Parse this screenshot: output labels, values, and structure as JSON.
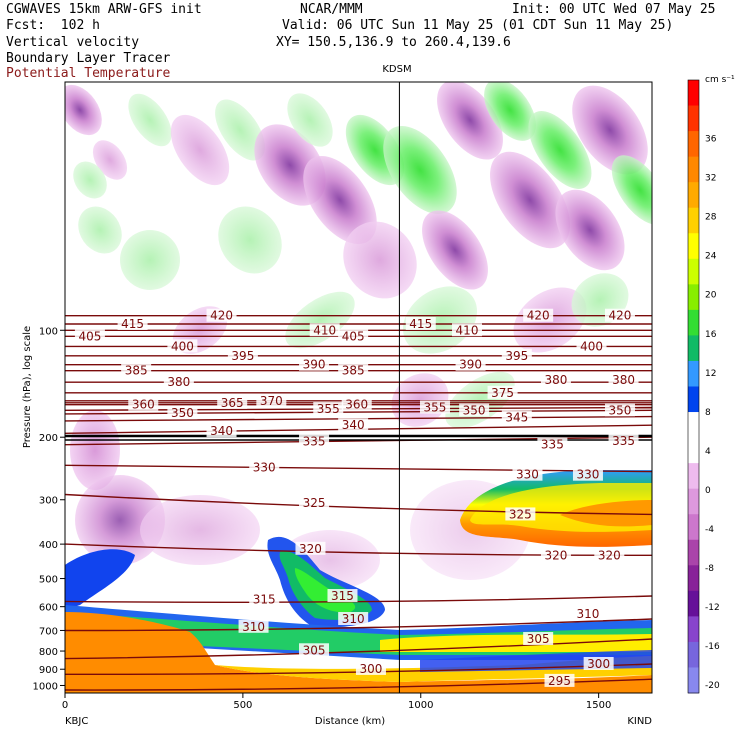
{
  "header": {
    "line1_left": "CGWAVES 15km ARW-GFS init",
    "line1_center": "NCAR/MMM",
    "line1_right": "Init: 00 UTC Wed 07 May 25",
    "line2_left": "Fcst:  102 h",
    "line2_right": "Valid: 06 UTC Sun 11 May 25 (01 CDT Sun 11 May 25)",
    "line3_left": "Vertical velocity",
    "line3_right": "XY= 150.5,136.9 to 260.4,139.6",
    "line4_left": "Boundary Layer Tracer",
    "line5_left": "Potential Temperature"
  },
  "colors": {
    "theta_contour": "#7a0a0a",
    "potential_temperature_label": "#8b1a1a",
    "cross_line": "#000000"
  },
  "chart_data": {
    "type": "heatmap",
    "xlabel": "Distance (km)",
    "ylabel": "Pressure (hPa), log scale",
    "xlim": [
      0,
      1650
    ],
    "ylim": [
      1050,
      20
    ],
    "y_scale": "log",
    "x_ticks": [
      0,
      500,
      1000,
      1500
    ],
    "y_ticks": [
      100,
      200,
      300,
      400,
      500,
      600,
      700,
      800,
      900,
      1000
    ],
    "station_left": "KBJC",
    "station_right": "KIND",
    "station_mid": "KDSM",
    "station_mid_x": 940,
    "colorbar": {
      "unit": "cm s⁻¹",
      "labels": [
        36,
        32,
        28,
        24,
        20,
        16,
        12,
        8,
        4,
        0,
        -4,
        -8,
        -12,
        -16,
        -20
      ],
      "colors": [
        "#ff0000",
        "#ff3300",
        "#ff6600",
        "#ff8800",
        "#ffaa00",
        "#ffd000",
        "#ffff00",
        "#ccff00",
        "#88ee00",
        "#33dd33",
        "#11bb66",
        "#3399ff",
        "#0044ee",
        "#ffffff",
        "#ffffff",
        "#eebbee",
        "#dd99dd",
        "#cc77cc",
        "#aa44aa",
        "#882299",
        "#661199",
        "#8844cc",
        "#7766dd",
        "#8888ee"
      ]
    },
    "theta_isentropes": [
      {
        "theta": 295,
        "p_left": 1030,
        "p_right": 960,
        "label_x": 1390
      },
      {
        "theta": 300,
        "p_left": 930,
        "p_right": 870,
        "label_x": 860
      },
      {
        "theta": 305,
        "p_left": 840,
        "p_right": 740,
        "label_x": 700
      },
      {
        "theta": 310,
        "p_left": 700,
        "p_right": 650,
        "label_x": 530
      },
      {
        "theta": 315,
        "p_left": 580,
        "p_right": 560,
        "label_x": 560
      },
      {
        "theta": 320,
        "p_left": 400,
        "p_right": 430,
        "label_x": 690
      },
      {
        "theta": 325,
        "p_left": 290,
        "p_right": 330,
        "label_x": 700
      },
      {
        "theta": 330,
        "p_left": 240,
        "p_right": 250,
        "label_x": 560
      },
      {
        "theta": 335,
        "p_left": 210,
        "p_right": 200,
        "label_x": 700
      },
      {
        "theta": 340,
        "p_left": 195,
        "p_right": 185,
        "label_x": 440
      },
      {
        "theta": 345,
        "p_left": 180,
        "p_right": 175,
        "label_x": 1270
      },
      {
        "theta": 350,
        "p_left": 172,
        "p_right": 168,
        "label_x": 330
      },
      {
        "theta": 355,
        "p_left": 168,
        "p_right": 165,
        "label_x": 740
      },
      {
        "theta": 360,
        "p_left": 162,
        "p_right": 162,
        "label_x": 220
      },
      {
        "theta": 365,
        "p_left": 160,
        "p_right": 160,
        "label_x": 470
      },
      {
        "theta": 370,
        "p_left": 158,
        "p_right": 158,
        "label_x": 580
      },
      {
        "theta": 375,
        "p_left": 150,
        "p_right": 150,
        "label_x": 1230
      },
      {
        "theta": 380,
        "p_left": 140,
        "p_right": 140,
        "label_x": 320
      },
      {
        "theta": 385,
        "p_left": 130,
        "p_right": 130,
        "label_x": 200
      },
      {
        "theta": 390,
        "p_left": 125,
        "p_right": 125,
        "label_x": 700
      },
      {
        "theta": 395,
        "p_left": 118,
        "p_right": 118,
        "label_x": 500
      },
      {
        "theta": 400,
        "p_left": 111,
        "p_right": 111,
        "label_x": 330
      },
      {
        "theta": 405,
        "p_left": 104,
        "p_right": 104,
        "label_x": 70
      },
      {
        "theta": 410,
        "p_left": 100,
        "p_right": 100,
        "label_x": 730
      },
      {
        "theta": 415,
        "p_left": 96,
        "p_right": 96,
        "label_x": 190
      },
      {
        "theta": 420,
        "p_left": 91,
        "p_right": 91,
        "label_x": 440
      }
    ],
    "extra_labels": [
      {
        "text": "405",
        "x": 810,
        "p": 104
      },
      {
        "text": "415",
        "x": 1000,
        "p": 96
      },
      {
        "text": "410",
        "x": 1130,
        "p": 100
      },
      {
        "text": "420",
        "x": 1330,
        "p": 91
      },
      {
        "text": "420",
        "x": 1560,
        "p": 91
      },
      {
        "text": "400",
        "x": 1480,
        "p": 111
      },
      {
        "text": "395",
        "x": 1270,
        "p": 118
      },
      {
        "text": "390",
        "x": 1140,
        "p": 125
      },
      {
        "text": "385",
        "x": 810,
        "p": 130
      },
      {
        "text": "380",
        "x": 1380,
        "p": 138
      },
      {
        "text": "380",
        "x": 1570,
        "p": 138
      },
      {
        "text": "360",
        "x": 820,
        "p": 162
      },
      {
        "text": "355",
        "x": 1040,
        "p": 165
      },
      {
        "text": "350",
        "x": 1150,
        "p": 168
      },
      {
        "text": "350",
        "x": 1560,
        "p": 168
      },
      {
        "text": "340",
        "x": 810,
        "p": 185
      },
      {
        "text": "335",
        "x": 1370,
        "p": 210
      },
      {
        "text": "335",
        "x": 1570,
        "p": 205
      },
      {
        "text": "330",
        "x": 1300,
        "p": 255
      },
      {
        "text": "330",
        "x": 1470,
        "p": 255
      },
      {
        "text": "325",
        "x": 1280,
        "p": 330
      },
      {
        "text": "320",
        "x": 1380,
        "p": 430
      },
      {
        "text": "320",
        "x": 1530,
        "p": 430
      },
      {
        "text": "315",
        "x": 780,
        "p": 560
      },
      {
        "text": "310",
        "x": 810,
        "p": 650
      },
      {
        "text": "310",
        "x": 1470,
        "p": 630
      },
      {
        "text": "305",
        "x": 1330,
        "p": 740
      },
      {
        "text": "300",
        "x": 1500,
        "p": 870
      }
    ]
  }
}
